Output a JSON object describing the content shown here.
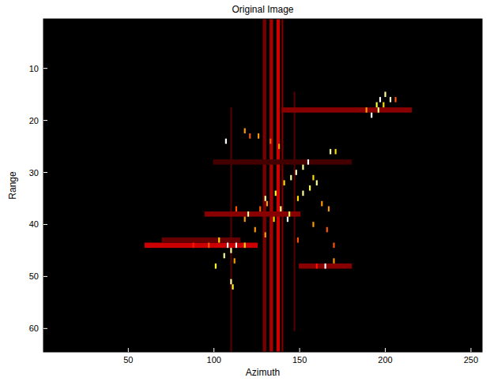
{
  "chart_data": {
    "type": "heatmap",
    "title": "Original Image",
    "x_label": "Azimuth",
    "y_label": "Range",
    "xlim": [
      0.5,
      256.5
    ],
    "ylim": [
      64.5,
      0.5
    ],
    "xticks": [
      50,
      100,
      150,
      200,
      250
    ],
    "yticks": [
      10,
      20,
      30,
      40,
      50,
      60
    ],
    "clim": [
      0,
      1
    ],
    "patches": [
      [
        129,
        130,
        1,
        64,
        0.18
      ],
      [
        133,
        134,
        1,
        64,
        0.25
      ],
      [
        137,
        138,
        1,
        64,
        0.3
      ],
      [
        140,
        140,
        1,
        64,
        0.18
      ],
      [
        110,
        110,
        18,
        64,
        0.12
      ],
      [
        147,
        147,
        15,
        60,
        0.12
      ],
      [
        60,
        125,
        44,
        44,
        0.3
      ],
      [
        70,
        115,
        43,
        43,
        0.15
      ],
      [
        140,
        215,
        18,
        18,
        0.2
      ],
      [
        95,
        150,
        38,
        38,
        0.2
      ],
      [
        150,
        180,
        48,
        48,
        0.2
      ],
      [
        100,
        180,
        28,
        28,
        0.1
      ]
    ],
    "cells": [
      [
        197,
        16,
        1
      ],
      [
        200,
        15,
        0.9
      ],
      [
        203,
        16,
        0.95
      ],
      [
        195,
        17,
        0.8
      ],
      [
        199,
        17,
        0.7
      ],
      [
        192,
        19,
        1
      ],
      [
        196,
        18,
        0.9
      ],
      [
        189,
        18,
        0.6
      ],
      [
        206,
        16,
        0.5
      ],
      [
        107,
        24,
        1
      ],
      [
        118,
        22,
        0.6
      ],
      [
        121,
        23,
        0.5
      ],
      [
        126,
        23,
        0.6
      ],
      [
        133,
        24,
        0.5
      ],
      [
        138,
        25,
        0.6
      ],
      [
        168,
        26,
        0.9
      ],
      [
        171,
        26,
        0.7
      ],
      [
        155,
        28,
        1
      ],
      [
        152,
        29,
        0.9
      ],
      [
        148,
        30,
        0.95
      ],
      [
        145,
        31,
        0.9
      ],
      [
        158,
        31,
        0.7
      ],
      [
        160,
        32,
        0.9
      ],
      [
        156,
        33,
        0.8
      ],
      [
        152,
        34,
        0.9
      ],
      [
        149,
        35,
        0.7
      ],
      [
        141,
        32,
        0.7
      ],
      [
        136,
        34,
        0.8
      ],
      [
        130,
        35,
        0.9
      ],
      [
        131,
        36,
        0.6
      ],
      [
        127,
        37,
        0.5
      ],
      [
        139,
        37,
        0.9
      ],
      [
        144,
        38,
        0.8
      ],
      [
        143,
        39,
        1
      ],
      [
        135,
        39,
        0.7
      ],
      [
        120,
        38,
        0.9
      ],
      [
        118,
        39,
        0.6
      ],
      [
        113,
        37,
        0.5
      ],
      [
        163,
        36,
        0.6
      ],
      [
        167,
        37,
        0.6
      ],
      [
        124,
        41,
        0.6
      ],
      [
        130,
        42,
        0.6
      ],
      [
        158,
        40,
        0.6
      ],
      [
        166,
        41,
        0.5
      ],
      [
        103,
        43,
        0.7
      ],
      [
        97,
        44,
        0.5
      ],
      [
        108,
        44,
        1
      ],
      [
        113,
        44,
        1
      ],
      [
        118,
        44,
        0.7
      ],
      [
        88,
        44,
        0.4
      ],
      [
        110,
        45,
        0.9
      ],
      [
        106,
        46,
        0.9
      ],
      [
        112,
        47,
        0.6
      ],
      [
        101,
        48,
        0.8
      ],
      [
        165,
        48,
        1
      ],
      [
        170,
        47,
        0.6
      ],
      [
        160,
        48,
        0.4
      ],
      [
        110,
        51,
        0.9
      ],
      [
        111,
        52,
        0.8
      ],
      [
        170,
        44,
        0.5
      ],
      [
        149,
        43,
        0.5
      ]
    ]
  }
}
